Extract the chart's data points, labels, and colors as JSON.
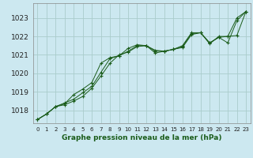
{
  "title": "Graphe pression niveau de la mer (hPa)",
  "background_color": "#cce8f0",
  "grid_color": "#aacccc",
  "line_color": "#1a5c1a",
  "x_labels": [
    "0",
    "1",
    "2",
    "3",
    "4",
    "5",
    "6",
    "7",
    "8",
    "9",
    "10",
    "11",
    "12",
    "13",
    "14",
    "15",
    "16",
    "17",
    "18",
    "19",
    "20",
    "21",
    "22",
    "23"
  ],
  "ylim": [
    1017.3,
    1023.8
  ],
  "yticks": [
    1018,
    1019,
    1020,
    1021,
    1022,
    1023
  ],
  "series": [
    [
      1017.5,
      1017.8,
      1018.2,
      1018.3,
      1018.5,
      1018.75,
      1019.2,
      1019.85,
      1020.55,
      1021.0,
      1021.15,
      1021.45,
      1021.5,
      1021.2,
      1021.2,
      1021.3,
      1021.4,
      1022.1,
      1022.2,
      1021.65,
      1021.95,
      1021.65,
      1022.85,
      1023.35
    ],
    [
      1017.5,
      1017.8,
      1018.2,
      1018.35,
      1018.85,
      1019.15,
      1019.5,
      1020.55,
      1020.85,
      1020.95,
      1021.35,
      1021.55,
      1021.5,
      1021.25,
      1021.2,
      1021.3,
      1021.45,
      1022.15,
      1022.2,
      1021.65,
      1021.95,
      1022.0,
      1022.05,
      1023.35
    ],
    [
      1017.5,
      1017.8,
      1018.2,
      1018.4,
      1018.6,
      1018.95,
      1019.3,
      1020.05,
      1020.8,
      1020.95,
      1021.2,
      1021.5,
      1021.5,
      1021.1,
      1021.2,
      1021.3,
      1021.5,
      1022.2,
      1022.2,
      1021.6,
      1022.0,
      1022.0,
      1023.0,
      1023.35
    ]
  ]
}
